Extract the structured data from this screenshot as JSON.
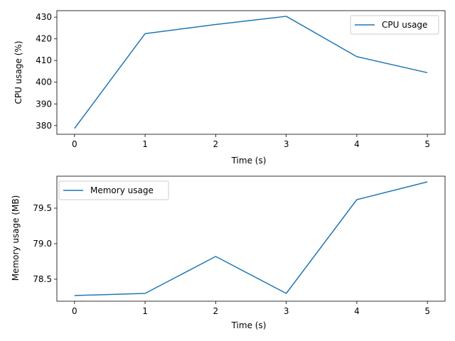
{
  "chart_data": [
    {
      "type": "line",
      "x": [
        0,
        1,
        2,
        3,
        4,
        5
      ],
      "series": [
        {
          "name": "CPU usage",
          "values": [
            378.7,
            422.4,
            426.6,
            430.4,
            411.8,
            404.4
          ],
          "color": "#1f77b4"
        }
      ],
      "xlabel": "Time (s)",
      "ylabel": "CPU usage (%)",
      "xlim": [
        -0.25,
        5.25
      ],
      "ylim": [
        376.0,
        433.0
      ],
      "xticks": [
        0,
        1,
        2,
        3,
        4,
        5
      ],
      "yticks": [
        380,
        390,
        400,
        410,
        420,
        430
      ],
      "legend_position": "top-right",
      "grid": false
    },
    {
      "type": "line",
      "x": [
        0,
        1,
        2,
        3,
        4,
        5
      ],
      "series": [
        {
          "name": "Memory usage",
          "values": [
            78.27,
            78.3,
            78.82,
            78.3,
            79.62,
            79.87
          ],
          "color": "#1f77b4"
        }
      ],
      "xlabel": "Time (s)",
      "ylabel": "Memory usage (MB)",
      "xlim": [
        -0.25,
        5.25
      ],
      "ylim": [
        78.19,
        79.95
      ],
      "xticks": [
        0,
        1,
        2,
        3,
        4,
        5
      ],
      "yticks": [
        "78.5",
        "79.0",
        "79.5"
      ],
      "legend_position": "top-left",
      "grid": false
    }
  ]
}
